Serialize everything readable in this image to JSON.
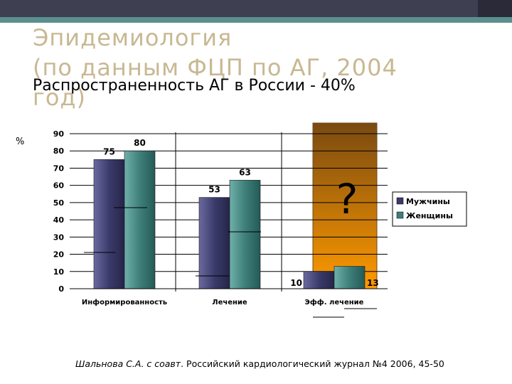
{
  "slide": {
    "title_line1": "Эпидемиология",
    "title_line2": "(по данным ФЦП по АГ, 2004",
    "title_line3": "год)",
    "subtitle": "Распространенность АГ в России - 40%",
    "y_unit": "%",
    "citation_authors": "Шальнова С.А. с соавт",
    "citation_rest": ". Российский кардиологический журнал №4 2006, 45-50"
  },
  "colors": {
    "top_bar": "#3f3f52",
    "teal_bar": "#5a8f8e",
    "title": "#c8b892",
    "men": "#3b3b6b",
    "women": "#3f7f7a",
    "highlight_top": "#7a4a10",
    "highlight_bottom": "#ff9a00"
  },
  "chart_data": {
    "type": "bar",
    "categories": [
      "Информированность",
      "Лечение",
      "Эфф. лечение"
    ],
    "series": [
      {
        "name": "Мужчины",
        "values": [
          75,
          53,
          10
        ]
      },
      {
        "name": "Женщины",
        "values": [
          80,
          63,
          13
        ]
      }
    ],
    "ylim": [
      0,
      90
    ],
    "yticks": [
      0,
      10,
      20,
      30,
      40,
      50,
      60,
      70,
      80,
      90
    ],
    "grid": true,
    "legend": "right",
    "annotation": "?",
    "highlighted_category": "Эфф. лечение"
  }
}
